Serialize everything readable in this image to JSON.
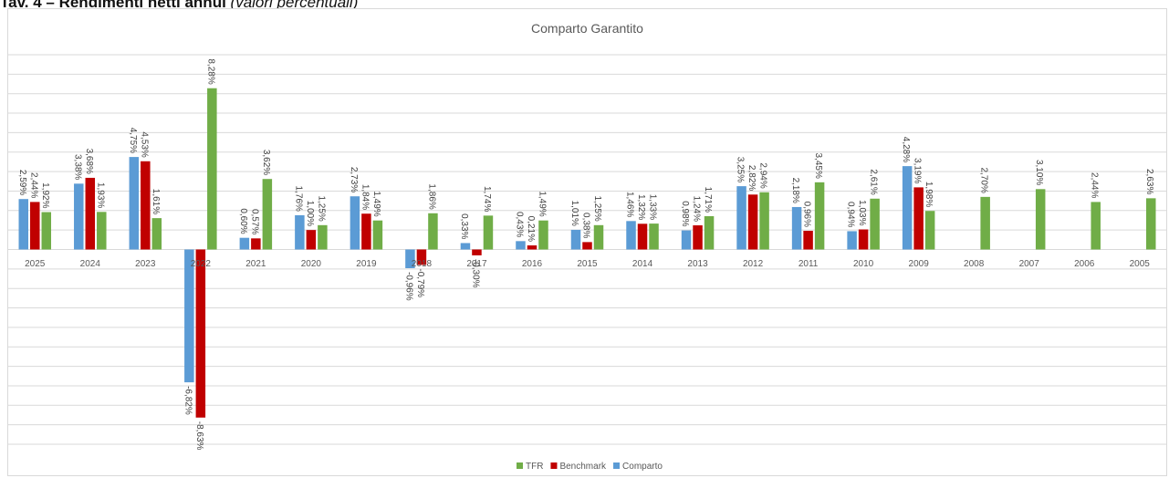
{
  "page": {
    "heading_number": "Tav. 4 – ",
    "heading_bold": "Rendimenti netti annui",
    "heading_italic": " (valori percentuali)"
  },
  "chart_data": {
    "type": "bar",
    "title": "Comparto Garantito",
    "xlabel": "",
    "ylabel": "",
    "ylim": [
      -10,
      10
    ],
    "grid": true,
    "legend": "bottom",
    "categories": [
      "2025",
      "2024",
      "2023",
      "2022",
      "2021",
      "2020",
      "2019",
      "2018",
      "2017",
      "2016",
      "2015",
      "2014",
      "2013",
      "2012",
      "2011",
      "2010",
      "2009",
      "2008",
      "2007",
      "2006",
      "2005"
    ],
    "series": [
      {
        "name": "Comparto",
        "color": "#5b9bd5",
        "values": [
          2.59,
          3.38,
          4.75,
          -6.82,
          0.6,
          1.76,
          2.73,
          -0.96,
          0.33,
          0.43,
          1.01,
          1.46,
          0.98,
          3.25,
          2.18,
          0.94,
          4.28,
          null,
          null,
          null,
          null
        ],
        "labels": [
          "2,59%",
          "3,38%",
          "4,75%",
          "-6,82%",
          "0,60%",
          "1,76%",
          "2,73%",
          "-0,96%",
          "0,33%",
          "0,43%",
          "1,01%",
          "1,46%",
          "0,98%",
          "3,25%",
          "2,18%",
          "0,94%",
          "4,28%",
          "",
          "",
          "",
          ""
        ]
      },
      {
        "name": "Benchmark",
        "color": "#c00000",
        "values": [
          2.44,
          3.68,
          4.53,
          -8.63,
          0.57,
          1.0,
          1.84,
          -0.79,
          -0.3,
          0.21,
          0.38,
          1.32,
          1.24,
          2.82,
          0.96,
          1.03,
          3.19,
          null,
          null,
          null,
          null
        ],
        "labels": [
          "2,44%",
          "3,68%",
          "4,53%",
          "-8,63%",
          "0,57%",
          "1,00%",
          "1,84%",
          "-0,79%",
          "-0,30%",
          "0,21%",
          "0,38%",
          "1,32%",
          "1,24%",
          "2,82%",
          "0,96%",
          "1,03%",
          "3,19%",
          "",
          "",
          "",
          ""
        ]
      },
      {
        "name": "TFR",
        "color": "#70ad47",
        "values": [
          1.92,
          1.93,
          1.61,
          8.28,
          3.62,
          1.25,
          1.49,
          1.86,
          1.74,
          1.49,
          1.25,
          1.33,
          1.71,
          2.94,
          3.45,
          2.61,
          1.98,
          2.7,
          3.1,
          2.44,
          2.63
        ],
        "labels": [
          "1,92%",
          "1,93%",
          "1,61%",
          "8,28%",
          "3,62%",
          "1,25%",
          "1,49%",
          "1,86%",
          "1,74%",
          "1,49%",
          "1,25%",
          "1,33%",
          "1,71%",
          "2,94%",
          "3,45%",
          "2,61%",
          "1,98%",
          "2,70%",
          "3,10%",
          "2,44%",
          "2,63%"
        ]
      }
    ],
    "legend_order": [
      "TFR",
      "Benchmark",
      "Comparto"
    ]
  }
}
